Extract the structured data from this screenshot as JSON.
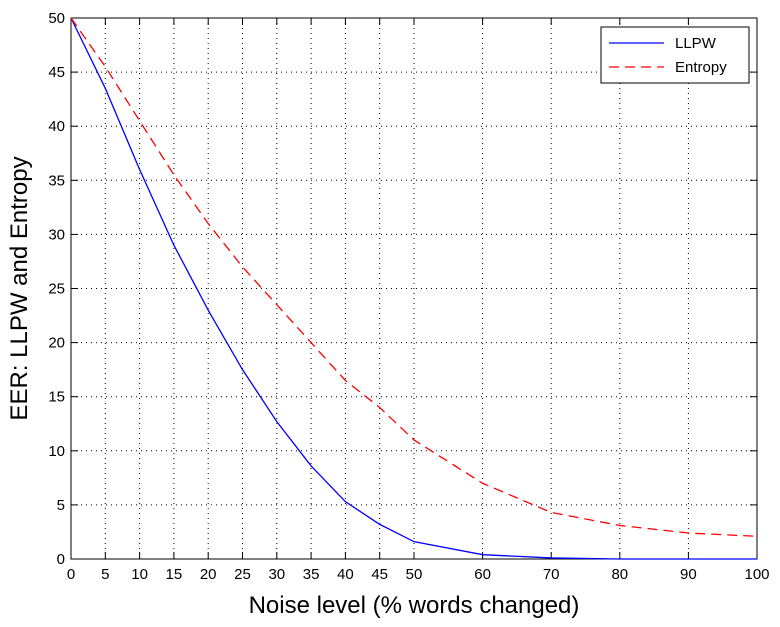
{
  "chart_data": {
    "type": "line",
    "title": "",
    "xlabel": "Noise level (% words changed)",
    "ylabel": "EER: LLPW and Entropy",
    "x": [
      0,
      5,
      10,
      15,
      20,
      25,
      30,
      35,
      40,
      45,
      50,
      60,
      70,
      80,
      90,
      100
    ],
    "xticks": [
      0,
      5,
      10,
      15,
      20,
      25,
      30,
      35,
      40,
      45,
      50,
      60,
      70,
      80,
      90,
      100
    ],
    "yticks": [
      0,
      5,
      10,
      15,
      20,
      25,
      30,
      35,
      40,
      45,
      50
    ],
    "ylim": [
      0,
      50
    ],
    "grid": true,
    "legend_position": "top-right",
    "series": [
      {
        "name": "LLPW",
        "color": "#0000ff",
        "style": "solid",
        "values": [
          50,
          43.5,
          36,
          29,
          23,
          17.5,
          12.7,
          8.6,
          5.3,
          3.2,
          1.6,
          0.4,
          0.1,
          0,
          0,
          0
        ]
      },
      {
        "name": "Entropy",
        "color": "#ff0000",
        "style": "dashed",
        "values": [
          50,
          45.5,
          40.5,
          35.5,
          31,
          27,
          23.5,
          20,
          16.5,
          14,
          11,
          7,
          4.3,
          3.1,
          2.4,
          2.1
        ]
      }
    ]
  }
}
